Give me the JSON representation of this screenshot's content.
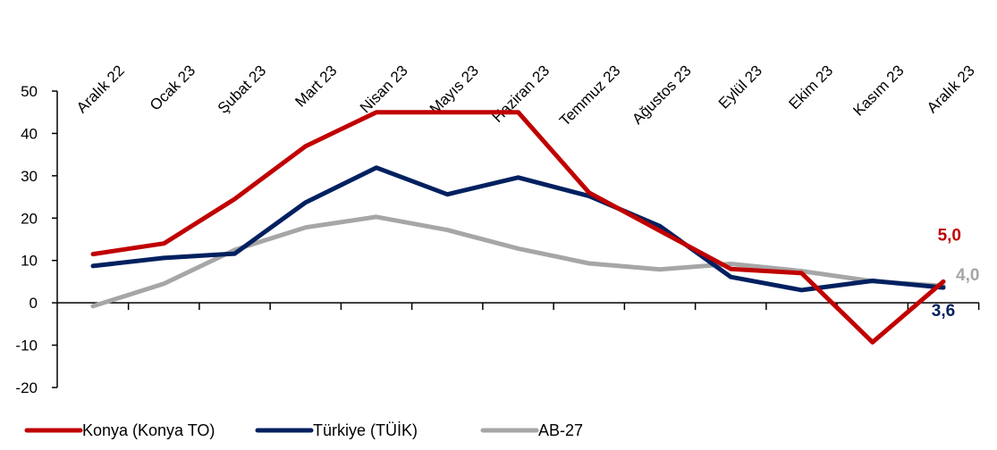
{
  "chart_data": {
    "type": "line",
    "categories": [
      "Aralık 22",
      "Ocak 23",
      "Şubat 23",
      "Mart 23",
      "Nisan 23",
      "Mayıs 23",
      "Haziran 23",
      "Temmuz 23",
      "Ağustos 23",
      "Eylül 23",
      "Ekim 23",
      "Kasım 23",
      "Aralık 23"
    ],
    "ylim": [
      -20,
      50
    ],
    "yticks": [
      -20,
      -10,
      0,
      10,
      20,
      30,
      40,
      50
    ],
    "grid": false,
    "legend_position": "bottom-left",
    "series": [
      {
        "name": "Konya (Konya TO)",
        "color": "#C00000",
        "values": [
          11.5,
          14,
          24.5,
          37,
          45,
          45,
          45,
          26,
          17,
          8,
          7,
          -9.3,
          5.0
        ],
        "end_label": "5,0"
      },
      {
        "name": "Türkiye (TÜİK)",
        "color": "#002060",
        "values": [
          8.7,
          10.6,
          11.6,
          23.7,
          31.9,
          25.6,
          29.6,
          25.2,
          18.1,
          6.1,
          3.0,
          5.2,
          3.6
        ],
        "end_label": "3,6"
      },
      {
        "name": "AB-27",
        "color": "#A6A6A6",
        "values": [
          -0.8,
          4.5,
          12.5,
          17.8,
          20.3,
          17.2,
          12.8,
          9.3,
          7.9,
          9.2,
          7.5,
          5.1,
          4.0
        ],
        "end_label": "4,0"
      }
    ]
  }
}
